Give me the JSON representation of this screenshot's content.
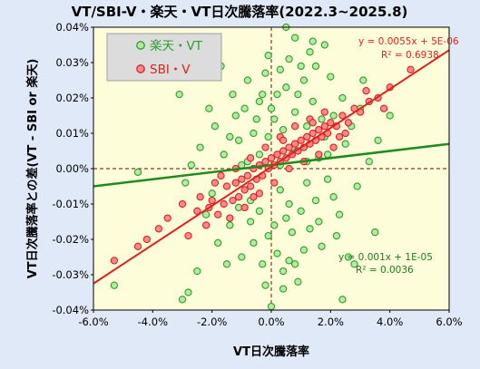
{
  "chart_data": {
    "type": "scatter",
    "title": "VT/SBI-V・楽天・VT日次騰落率(2022.3~2025.8)",
    "xlabel": "VT日次騰落率",
    "ylabel": "VT日次騰落率との差(VT - SBI or 楽天)",
    "xlim": [
      -0.06,
      0.06
    ],
    "ylim": [
      -0.0004,
      0.0004
    ],
    "x_ticks": [
      "-6.0%",
      "-4.0%",
      "-2.0%",
      "0.0%",
      "2.0%",
      "4.0%",
      "6.0%"
    ],
    "y_ticks": [
      "0.04%",
      "0.03%",
      "0.02%",
      "0.01%",
      "0.00%",
      "-0.01%",
      "-0.02%",
      "-0.03%",
      "-0.04%"
    ],
    "grid": false,
    "legend_position": "top-left",
    "series": [
      {
        "name": "楽天・VT",
        "color": "#2e9e2e",
        "fill": "#b6eaa0",
        "trendline": {
          "slope": 0.001,
          "intercept": 1e-05,
          "r2": 0.0036,
          "color": "#1f8a1f"
        },
        "equation_text": "y = 0.001x + 1E-05",
        "r2_text": "R² = 0.0036",
        "points": [
          [
            -0.045,
            -1e-05
          ],
          [
            -0.053,
            -0.00033
          ],
          [
            -0.029,
            -4e-05
          ],
          [
            -0.031,
            0.00021
          ],
          [
            -0.025,
            -0.00029
          ],
          [
            -0.02,
            -7e-05
          ],
          [
            0.005,
            0.0004
          ],
          [
            0.008,
            0.00037
          ],
          [
            0.013,
            0.00033
          ],
          [
            0.0,
            -0.00039
          ],
          [
            0.004,
            -0.00034
          ],
          [
            -0.017,
            0.00029
          ],
          [
            0.018,
            0.00035
          ],
          [
            0.024,
            -0.00037
          ],
          [
            0.035,
            -0.00018
          ],
          [
            0.04,
            0.00015
          ],
          [
            0.028,
            -0.00027
          ],
          [
            -0.03,
            -0.00037
          ],
          [
            -0.028,
            -0.00035
          ],
          [
            0.031,
            0.00025
          ],
          [
            -0.008,
            2e-05
          ],
          [
            0.012,
            0.00012
          ],
          [
            -0.004,
            -0.00012
          ],
          [
            0.002,
            0.00021
          ],
          [
            0.007,
            -0.00018
          ],
          [
            -0.011,
            8e-05
          ],
          [
            0.015,
            -9e-05
          ],
          [
            -0.002,
            0.00027
          ],
          [
            0.009,
            5e-05
          ],
          [
            -0.006,
            -0.00021
          ],
          [
            0.021,
            0.00015
          ],
          [
            -0.014,
            -0.00016
          ],
          [
            0.003,
            -6e-05
          ],
          [
            0.011,
            0.00025
          ],
          [
            -0.001,
            9e-05
          ],
          [
            0.017,
            -0.00022
          ],
          [
            -0.009,
            0.00017
          ],
          [
            0.006,
            0.00031
          ],
          [
            -0.016,
            4e-05
          ],
          [
            0.025,
            7e-05
          ],
          [
            -0.003,
            -0.00027
          ],
          [
            0.014,
            0.00019
          ],
          [
            0.001,
            -0.00016
          ],
          [
            -0.012,
            -4e-05
          ],
          [
            0.019,
            -3e-05
          ],
          [
            0.008,
            -0.00027
          ],
          [
            -0.005,
            0.00014
          ],
          [
            0.004,
            0.00011
          ],
          [
            -0.019,
            0.00012
          ],
          [
            0.023,
            -0.00013
          ],
          [
            -0.007,
            -9e-05
          ],
          [
            0.01,
            -0.00012
          ],
          [
            0.0,
            0.00017
          ],
          [
            0.016,
            3e-05
          ],
          [
            -0.01,
            -0.00025
          ],
          [
            0.027,
            0.00012
          ],
          [
            -0.022,
            -0.00013
          ],
          [
            0.013,
            -0.00017
          ],
          [
            0.005,
            0.00023
          ],
          [
            -0.013,
            0.00021
          ],
          [
            0.002,
            -0.00024
          ],
          [
            0.02,
            0.00026
          ],
          [
            -0.004,
            4e-05
          ],
          [
            0.009,
            -0.00032
          ],
          [
            -0.001,
            -0.00019
          ],
          [
            0.029,
            -5e-05
          ],
          [
            -0.024,
            6e-05
          ],
          [
            0.006,
            -0.0001
          ],
          [
            0.012,
            -4e-05
          ],
          [
            -0.008,
            0.00025
          ],
          [
            0.015,
            0.00029
          ],
          [
            -0.015,
            -0.00027
          ],
          [
            0.018,
            9e-05
          ],
          [
            0.003,
            0.00028
          ],
          [
            -0.002,
            -0.00033
          ],
          [
            0.022,
            -0.00019
          ],
          [
            0.033,
            2e-05
          ],
          [
            -0.006,
            0.0001
          ],
          [
            0.007,
            6e-05
          ],
          [
            -0.012,
            0.00015
          ],
          [
            0.011,
            -0.00023
          ],
          [
            0.001,
            0.00014
          ],
          [
            -0.027,
            1e-05
          ],
          [
            0.026,
            -0.00025
          ],
          [
            -0.003,
            0.00021
          ],
          [
            0.017,
            0.00014
          ],
          [
            0.004,
            -0.00029
          ],
          [
            -0.018,
            -0.00021
          ],
          [
            0.014,
            0.00036
          ],
          [
            0.009,
            0.00021
          ],
          [
            -0.01,
            1e-05
          ],
          [
            0.002,
            4e-05
          ],
          [
            0.021,
            -8e-05
          ],
          [
            0.008,
            0.00016
          ],
          [
            -0.007,
            -0.00015
          ],
          [
            0.012,
            2e-05
          ],
          [
            0.005,
            -0.00014
          ],
          [
            -0.021,
            0.00017
          ],
          [
            0.036,
            8e-05
          ],
          [
            0.016,
            -0.00015
          ],
          [
            -0.001,
            0.00032
          ],
          [
            0.024,
            0.0002
          ],
          [
            0.01,
            0.00029
          ],
          [
            -0.011,
            -0.00011
          ],
          [
            0.006,
            -0.00026
          ],
          [
            -0.004,
            0.00019
          ],
          [
            0.019,
            4e-05
          ],
          [
            0.003,
            1e-05
          ],
          [
            -0.014,
            9e-05
          ],
          [
            0.03,
            0.00017
          ]
        ]
      },
      {
        "name": "SBI・V",
        "color": "#dd2020",
        "fill": "#ff8a8a",
        "trendline": {
          "slope": 0.0055,
          "intercept": 5e-06,
          "r2": 0.6938,
          "color": "#e02020"
        },
        "equation_text": "y = 0.0055x + 5E-06",
        "r2_text": "R² = 0.6938",
        "points": [
          [
            -0.053,
            -0.00026
          ],
          [
            -0.045,
            -0.00022
          ],
          [
            -0.038,
            -0.00017
          ],
          [
            -0.03,
            -0.0001
          ],
          [
            -0.028,
            -0.00019
          ],
          [
            -0.025,
            -0.00012
          ],
          [
            -0.022,
            -0.00016
          ],
          [
            -0.02,
            -9e-05
          ],
          [
            -0.018,
            -0.00013
          ],
          [
            -0.016,
            -0.0001
          ],
          [
            -0.015,
            -5e-05
          ],
          [
            -0.013,
            -9e-05
          ],
          [
            -0.012,
            -4e-05
          ],
          [
            -0.011,
            -8e-05
          ],
          [
            -0.01,
            -3e-05
          ],
          [
            -0.009,
            -6e-05
          ],
          [
            -0.008,
            -2e-05
          ],
          [
            -0.007,
            -5e-05
          ],
          [
            -0.006,
            0.0
          ],
          [
            -0.005,
            -3e-05
          ],
          [
            -0.004,
            1e-05
          ],
          [
            -0.003,
            -2e-05
          ],
          [
            -0.002,
            2e-05
          ],
          [
            -0.001,
            0.0
          ],
          [
            0.0,
            3e-05
          ],
          [
            0.001,
            1e-05
          ],
          [
            0.002,
            4e-05
          ],
          [
            0.003,
            2e-05
          ],
          [
            0.004,
            5e-05
          ],
          [
            0.005,
            3e-05
          ],
          [
            0.006,
            6e-05
          ],
          [
            0.007,
            4e-05
          ],
          [
            0.008,
            7e-05
          ],
          [
            0.009,
            5e-05
          ],
          [
            0.01,
            8e-05
          ],
          [
            0.011,
            6e-05
          ],
          [
            0.012,
            9e-05
          ],
          [
            0.013,
            7e-05
          ],
          [
            0.014,
            0.0001
          ],
          [
            0.015,
            8e-05
          ],
          [
            0.016,
            0.00011
          ],
          [
            0.017,
            9e-05
          ],
          [
            0.018,
            0.00012
          ],
          [
            0.019,
            0.0001
          ],
          [
            0.02,
            0.00013
          ],
          [
            0.022,
            0.00012
          ],
          [
            0.024,
            0.00015
          ],
          [
            0.026,
            0.00013
          ],
          [
            0.028,
            0.00017
          ],
          [
            0.03,
            0.00016
          ],
          [
            0.033,
            0.00019
          ],
          [
            0.036,
            0.0002
          ],
          [
            0.04,
            0.00023
          ],
          [
            0.047,
            0.00028
          ],
          [
            -0.019,
            -4e-05
          ],
          [
            -0.014,
            -0.00014
          ],
          [
            -0.009,
            -0.00011
          ],
          [
            -0.004,
            -7e-05
          ],
          [
            0.001,
            -4e-05
          ],
          [
            0.006,
            0.0
          ],
          [
            0.011,
            2e-05
          ],
          [
            0.016,
            4e-05
          ],
          [
            0.021,
            6e-05
          ],
          [
            -0.017,
            -2e-05
          ],
          [
            -0.012,
            0.0
          ],
          [
            -0.007,
            3e-05
          ],
          [
            -0.002,
            6e-05
          ],
          [
            0.003,
            9e-05
          ],
          [
            0.008,
            0.00012
          ],
          [
            0.013,
            0.00014
          ],
          [
            0.018,
            0.00016
          ],
          [
            0.023,
            9e-05
          ],
          [
            -0.024,
            -8e-05
          ],
          [
            -0.021,
            -0.00011
          ],
          [
            -0.006,
            -8e-05
          ],
          [
            0.004,
            8e-05
          ],
          [
            0.014,
            0.00013
          ],
          [
            0.025,
            0.0001
          ],
          [
            -0.035,
            -0.00014
          ],
          [
            0.032,
            0.00022
          ],
          [
            -0.042,
            -0.0002
          ],
          [
            0.038,
            0.00017
          ]
        ]
      }
    ]
  }
}
